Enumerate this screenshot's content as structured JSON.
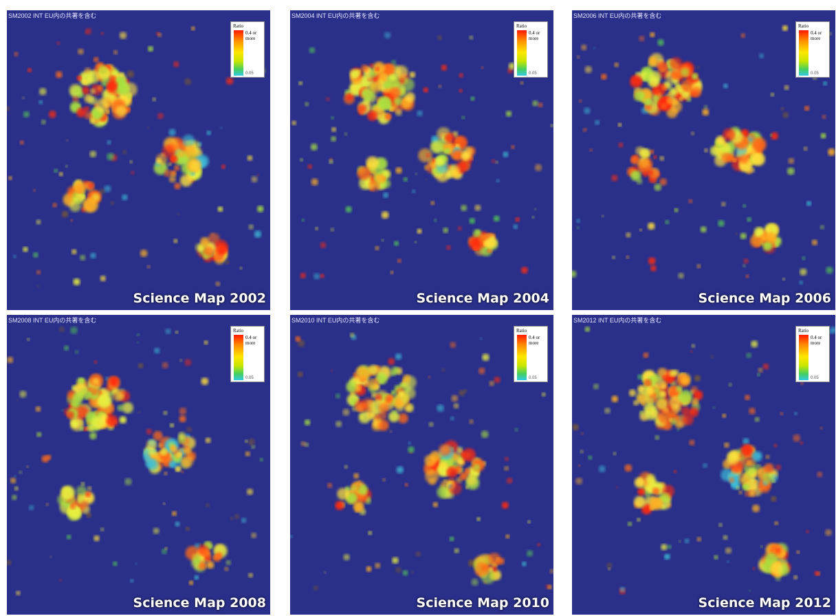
{
  "panels": [
    {
      "id": "2002",
      "header": "SM2002 INT EU内の共著を含む",
      "caption": "Science Map 2002"
    },
    {
      "id": "2004",
      "header": "SM2004 INT EU内の共著を含む",
      "caption": "Science Map 2004"
    },
    {
      "id": "2006",
      "header": "SM2006 INT EU内の共著を含む",
      "caption": "Science Map 2006"
    },
    {
      "id": "2008",
      "header": "SM2008 INT EU内の共著を含む",
      "caption": "Science Map 2008"
    },
    {
      "id": "2010",
      "header": "SM2010 INT EU内の共著を含む",
      "caption": "Science Map 2010"
    },
    {
      "id": "2012",
      "header": "SM2012 INT EU内の共著を含む",
      "caption": "Science Map 2012"
    }
  ],
  "legend": {
    "title": "Ratio",
    "max_label": "0.4 or more",
    "min_label": "0.05"
  },
  "colors": {
    "background": "#2a2f8a",
    "scale": [
      "#ff1a00",
      "#ff8a00",
      "#ffe600",
      "#c9e600",
      "#44d060",
      "#33c8e0"
    ]
  }
}
